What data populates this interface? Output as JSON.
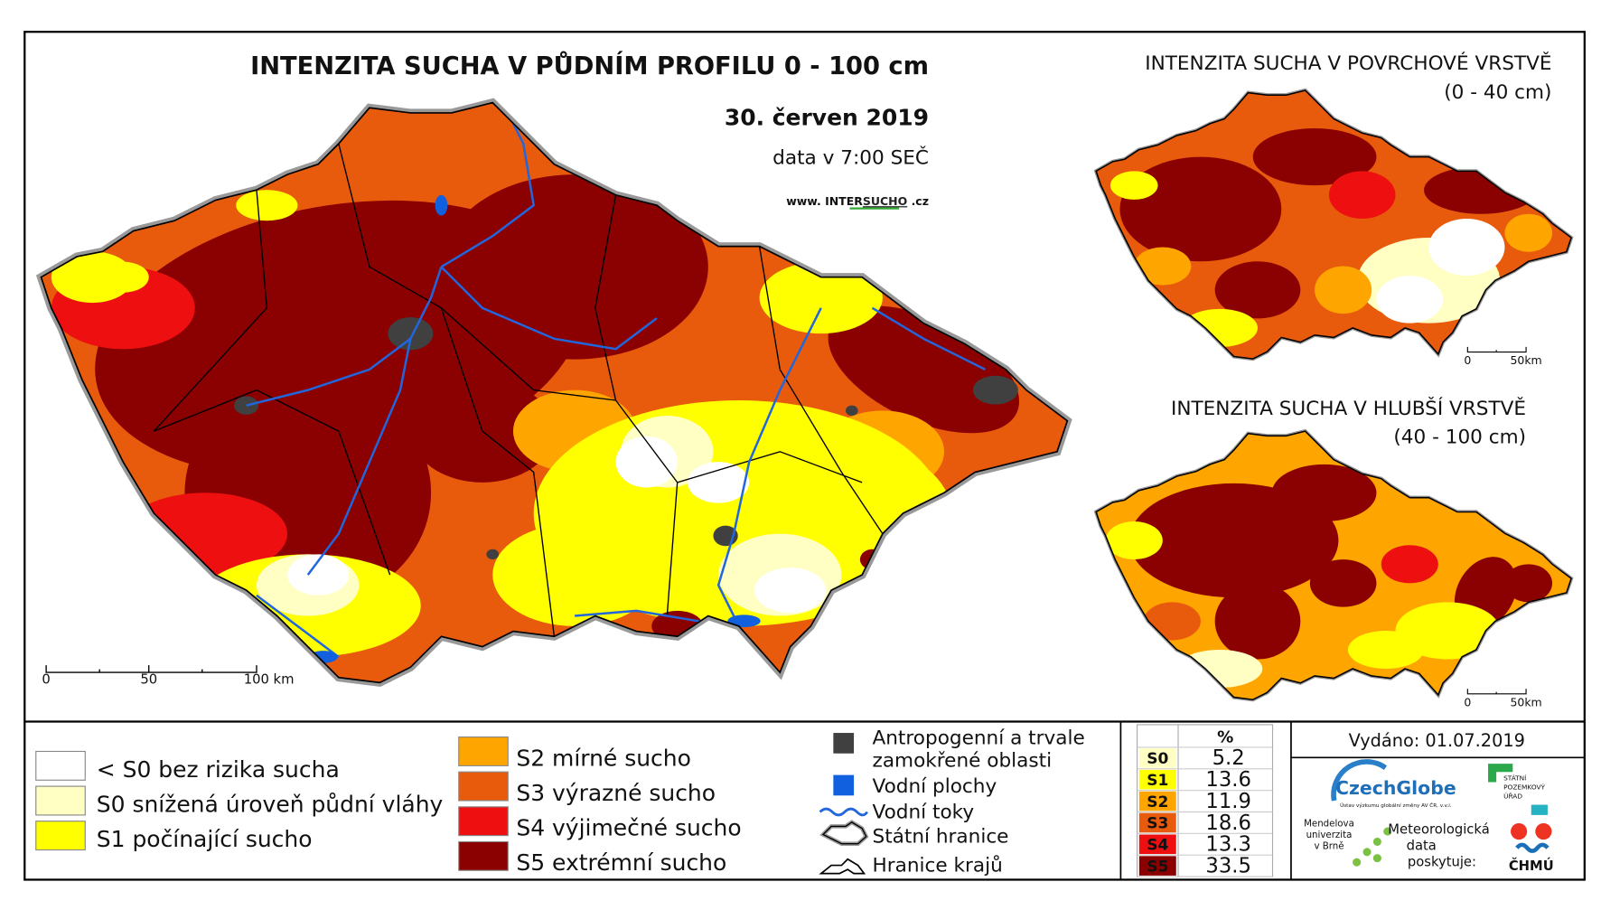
{
  "main_map": {
    "title": "INTENZITA SUCHA V PŮDNÍM PROFILU 0 - 100 cm",
    "date": "30. červen 2019",
    "data_time": "data v 7:00 SEČ",
    "website": {
      "prefix": "www. INTER",
      "highlight": "SUCHO",
      "suffix": " .cz"
    },
    "scale": [
      "0",
      "50",
      "100 km"
    ]
  },
  "insets": [
    {
      "title": "INTENZITA SUCHA V POVRCHOVÉ VRSTVĚ",
      "subtitle": "(0 - 40 cm)",
      "scale": [
        "0",
        "50km"
      ]
    },
    {
      "title": "INTENZITA SUCHA V HLUBŠÍ VRSTVĚ",
      "subtitle": "(40 - 100 cm)",
      "scale": [
        "0",
        "50km"
      ]
    }
  ],
  "legend": {
    "classes": [
      {
        "label": "< S0 bez rizika sucha",
        "color": "#ffffff"
      },
      {
        "label": "S0 snížená úroveň půdní vláhy",
        "color": "#ffffc4"
      },
      {
        "label": "S1 počínající sucho",
        "color": "#ffff00"
      },
      {
        "label": "S2 mírné sucho",
        "color": "#ffa500"
      },
      {
        "label": "S3 výrazné sucho",
        "color": "#e85a0c"
      },
      {
        "label": "S4 výjimečné sucho",
        "color": "#ee1010"
      },
      {
        "label": "S5 extrémní sucho",
        "color": "#8b0000"
      }
    ],
    "symbols": [
      {
        "lines": [
          "Antropogenní a trvale",
          "zamokřené oblasti"
        ],
        "color": "#404040"
      },
      {
        "lines": [
          "Vodní plochy"
        ],
        "color": "#1060e0"
      },
      {
        "lines": [
          "Vodní toky"
        ],
        "color": "#2266dd"
      },
      {
        "lines": [
          "Státní hranice"
        ],
        "color": "#000000"
      },
      {
        "lines": [
          "Hranice krajů"
        ],
        "color": "#000000"
      }
    ]
  },
  "stats": {
    "header": "%",
    "rows": [
      {
        "class": "S0",
        "value": 5.2,
        "color": "#ffffc4"
      },
      {
        "class": "S1",
        "value": 13.6,
        "color": "#ffff00"
      },
      {
        "class": "S2",
        "value": 11.9,
        "color": "#ffa500"
      },
      {
        "class": "S3",
        "value": 18.6,
        "color": "#e85a0c"
      },
      {
        "class": "S4",
        "value": 13.3,
        "color": "#ee1010"
      },
      {
        "class": "S5",
        "value": 33.5,
        "color": "#8b0000"
      }
    ]
  },
  "issued": "Vydáno: 01.07.2019",
  "logos": {
    "czechglobe": "CzechGlobe",
    "czechglobe_sub": "Ústav výzkumu globální změny AV ČR, v.v.i.",
    "spu": [
      "STÁTNÍ",
      "POZEMKOVÝ",
      "ÚŘAD"
    ],
    "mendelu": [
      "Mendelova",
      "univerzita",
      "v Brně"
    ],
    "meteo": [
      "Meteorologická",
      "data",
      "poskytuje:"
    ],
    "chmu": "ČHMÚ"
  }
}
